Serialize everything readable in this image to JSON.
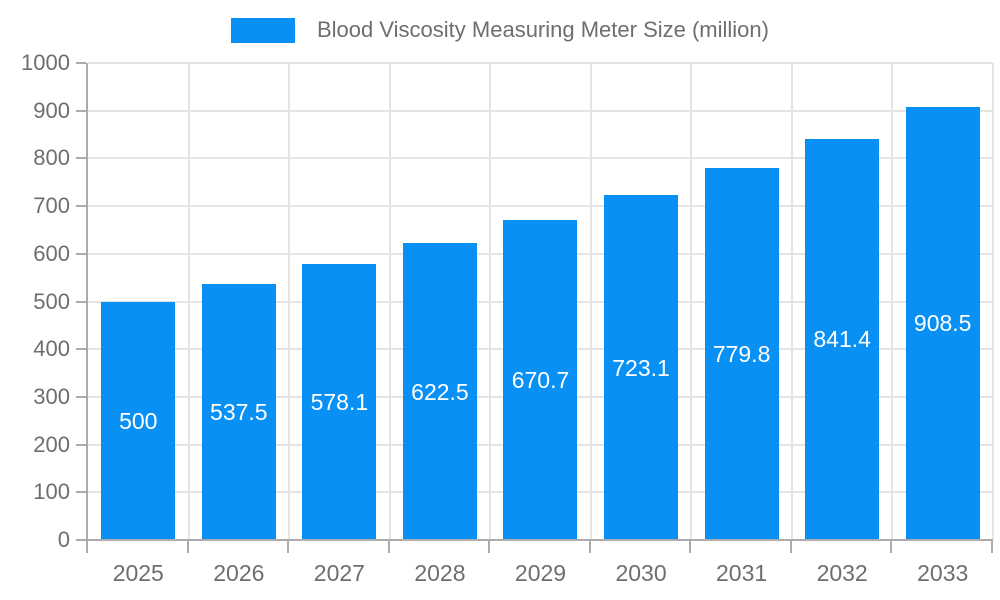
{
  "chart_data": {
    "type": "bar",
    "title": "Blood Viscosity Measuring Meter Size (million)",
    "categories": [
      "2025",
      "2026",
      "2027",
      "2028",
      "2029",
      "2030",
      "2031",
      "2032",
      "2033"
    ],
    "series": [
      {
        "name": "Blood Viscosity Measuring Meter Size (million)",
        "values": [
          500,
          537.5,
          578.1,
          622.5,
          670.7,
          723.1,
          779.8,
          841.4,
          908.5
        ],
        "labels": [
          "500",
          "537.5",
          "578.1",
          "622.5",
          "670.7",
          "723.1",
          "779.8",
          "841.4",
          "908.5"
        ]
      }
    ],
    "xlabel": "",
    "ylabel": "",
    "ylim": [
      0,
      1000
    ],
    "y_tick_step": 100,
    "y_tick_labels": [
      "0",
      "100",
      "200",
      "300",
      "400",
      "500",
      "600",
      "700",
      "800",
      "900",
      "1000"
    ],
    "grid": true,
    "legend_position": "top",
    "bar_labels_inside": true
  },
  "legend": {
    "label": "Blood Viscosity Measuring Meter Size (million)"
  },
  "colors": {
    "bar": "#0890F5",
    "grid": "#E4E4E4",
    "axis": "#ACACAC",
    "text": "#6E6E6E",
    "bar_label": "#FFFFFF",
    "background": "#FFFFFF"
  }
}
